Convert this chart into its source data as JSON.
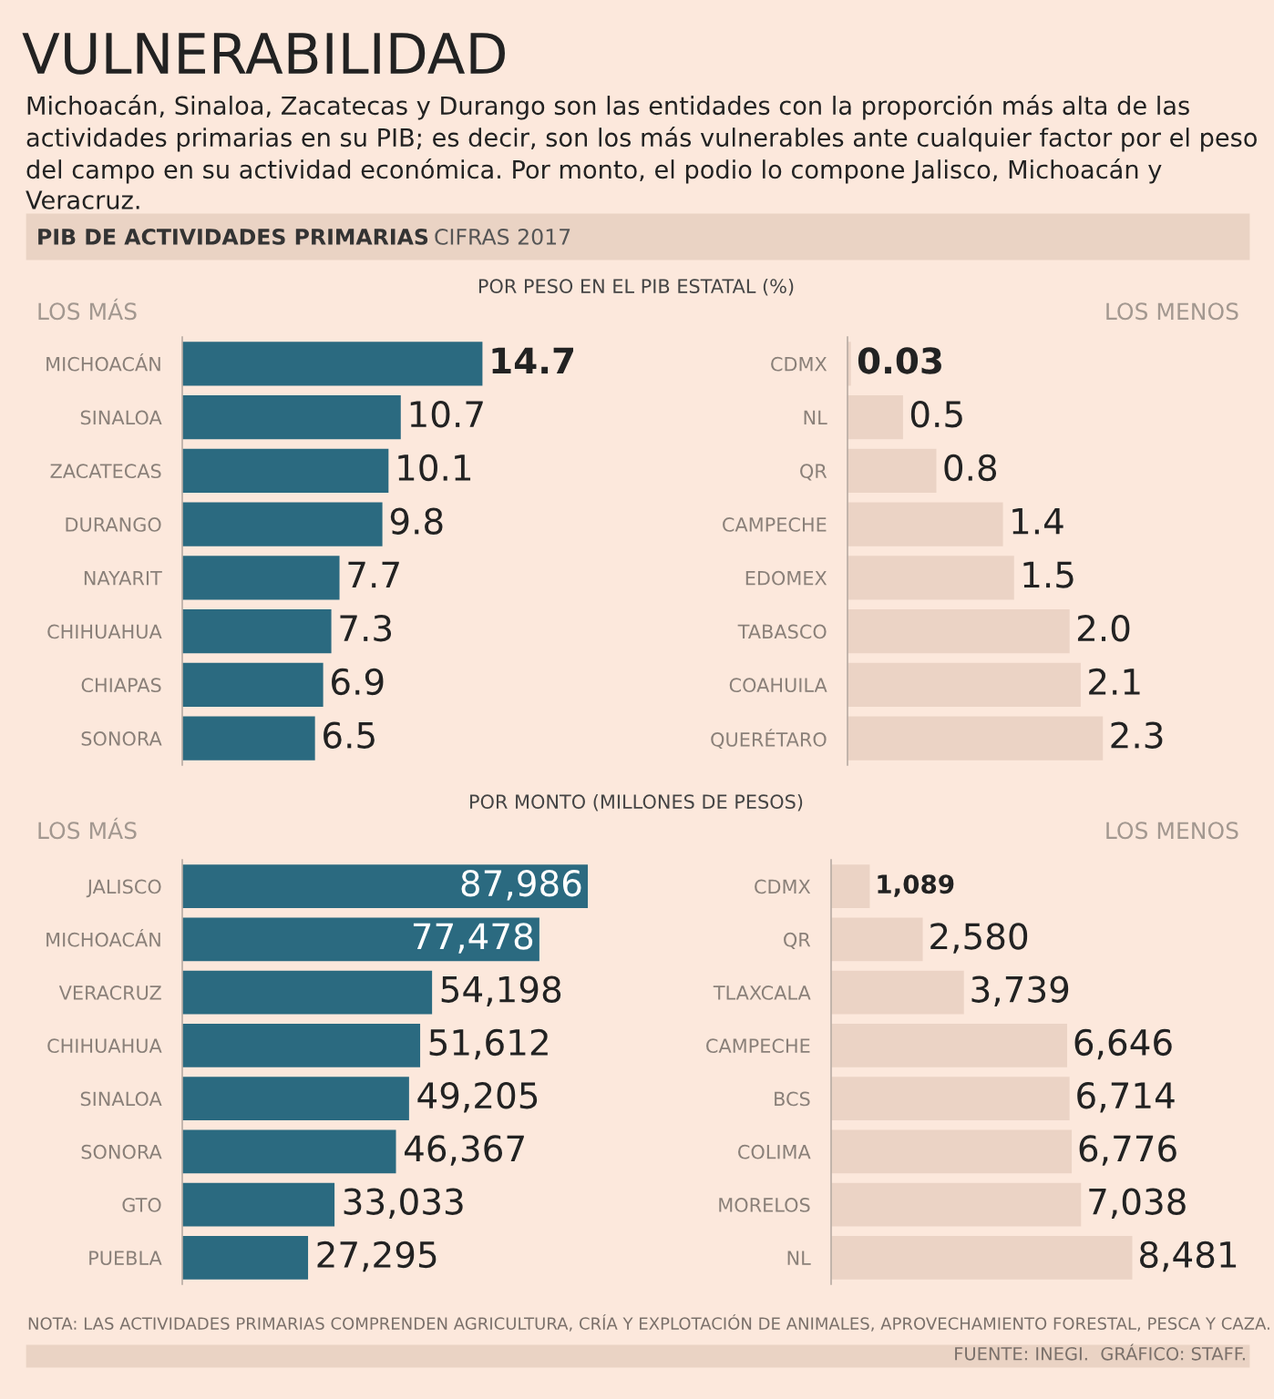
{
  "chart_data": [
    {
      "type": "bar",
      "orientation": "horizontal",
      "title": "VULNERABILIDAD",
      "subtitle": "Michoacán, Sinaloa, Zacatecas y Durango son las entidades con la proporción más alta de las actividades primarias en su PIB; es decir, son los más vulnerables ante cualquier factor por el peso del campo en su actividad económica. Por monto, el podio lo compone Jalisco, Michoacán y Veracruz.",
      "annotations": [
        "PIB DE ACTIVIDADES PRIMARIAS",
        "CIFRAS 2017",
        "POR PESO EN EL PIB ESTATAL (%)",
        "LOS MÁS"
      ],
      "categories": [
        "MICHOACÁN",
        "SINALOA",
        "ZACATECAS",
        "DURANGO",
        "NAYARIT",
        "CHIHUAHUA",
        "CHIAPAS",
        "SONORA"
      ],
      "values": [
        14.7,
        10.7,
        10.1,
        9.8,
        7.7,
        7.3,
        6.9,
        6.5
      ],
      "value_labels": [
        "14.7",
        "10.7",
        "10.1",
        "9.8",
        "7.7",
        "7.3",
        "6.9",
        "6.5"
      ],
      "color": "#2b6a80"
    },
    {
      "type": "bar",
      "orientation": "horizontal",
      "annotations": [
        "LOS MENOS"
      ],
      "categories": [
        "CDMX",
        "NL",
        "QR",
        "CAMPECHE",
        "EDOMEX",
        "TABASCO",
        "COAHUILA",
        "QUERÉTARO"
      ],
      "values": [
        0.03,
        0.5,
        0.8,
        1.4,
        1.5,
        2.0,
        2.1,
        2.3
      ],
      "value_labels": [
        "0.03",
        "0.5",
        "0.8",
        "1.4",
        "1.5",
        "2.0",
        "2.1",
        "2.3"
      ],
      "color": "#ebd3c5"
    },
    {
      "type": "bar",
      "orientation": "horizontal",
      "annotations": [
        "POR MONTO (MILLONES DE PESOS)",
        "LOS MÁS"
      ],
      "categories": [
        "JALISCO",
        "MICHOACÁN",
        "VERACRUZ",
        "CHIHUAHUA",
        "SINALOA",
        "SONORA",
        "GTO",
        "PUEBLA"
      ],
      "values": [
        87986,
        77478,
        54198,
        51612,
        49205,
        46367,
        33033,
        27295
      ],
      "value_labels": [
        "87,986",
        "77,478",
        "54,198",
        "51,612",
        "49,205",
        "46,367",
        "33,033",
        "27,295"
      ],
      "color": "#2b6a80"
    },
    {
      "type": "bar",
      "orientation": "horizontal",
      "annotations": [
        "LOS MENOS",
        "NOTA: LAS ACTIVIDADES PRIMARIAS COMPRENDEN AGRICULTURA, CRÍA Y EXPLOTACIÓN DE ANIMALES, APROVECHAMIENTO FORESTAL, PESCA Y CAZA.",
        "FUENTE: INEGI.  GRÁFICO: STAFF."
      ],
      "categories": [
        "CDMX",
        "QR",
        "TLAXCALA",
        "CAMPECHE",
        "BCS",
        "COLIMA",
        "MORELOS",
        "NL"
      ],
      "values": [
        1089,
        2580,
        3739,
        6646,
        6714,
        6776,
        7038,
        8481
      ],
      "value_labels": [
        "1,089",
        "2,580",
        "3,739",
        "6,646",
        "6,714",
        "6,776",
        "7,038",
        "8,481"
      ],
      "color": "#ebd3c5"
    }
  ]
}
